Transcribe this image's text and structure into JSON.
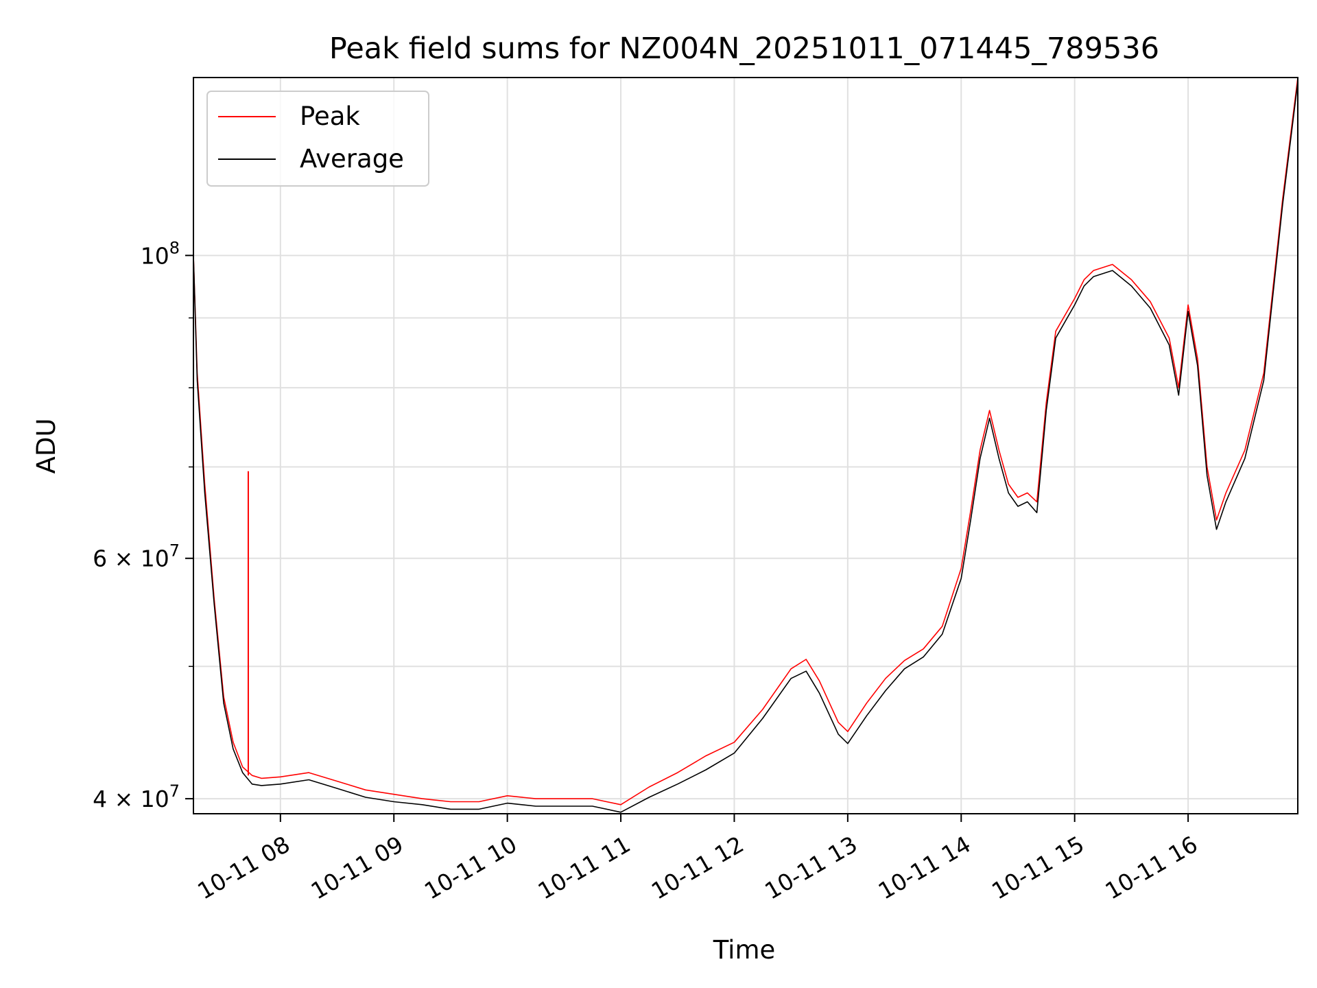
{
  "chart_data": {
    "type": "line",
    "title": "Peak field sums for NZ004N_20251011_071445_789536",
    "xlabel": "Time",
    "ylabel": "ADU",
    "yscale": "log",
    "xlim": [
      "2025-10-11 07:14",
      "2025-10-11 16:58"
    ],
    "ylim": [
      39000000,
      135000000
    ],
    "x_ticks": [
      "10-11 08",
      "10-11 09",
      "10-11 10",
      "10-11 11",
      "10-11 12",
      "10-11 13",
      "10-11 14",
      "10-11 15",
      "10-11 16"
    ],
    "y_ticks": [
      {
        "value": 40000000,
        "base": "4 × 10",
        "exp": "7"
      },
      {
        "value": 60000000,
        "base": "6 × 10",
        "exp": "7"
      },
      {
        "value": 100000000,
        "base": "10",
        "exp": "8"
      }
    ],
    "y_minor_ticks": [
      50000000,
      70000000,
      80000000,
      90000000
    ],
    "grid": true,
    "legend_position": "upper-left",
    "series": [
      {
        "name": "Peak",
        "color": "#ff0000",
        "x": [
          "07:14",
          "07:16",
          "07:20",
          "07:25",
          "07:30",
          "07:35",
          "07:40",
          "07:45",
          "07:50",
          "08:00",
          "08:15",
          "08:30",
          "08:45",
          "09:00",
          "09:15",
          "09:30",
          "09:45",
          "10:00",
          "10:15",
          "10:30",
          "10:45",
          "11:00",
          "11:15",
          "11:30",
          "11:45",
          "12:00",
          "12:15",
          "12:30",
          "12:38",
          "12:45",
          "12:55",
          "13:00",
          "13:10",
          "13:20",
          "13:30",
          "13:40",
          "13:50",
          "14:00",
          "14:05",
          "14:10",
          "14:15",
          "14:20",
          "14:25",
          "14:30",
          "14:35",
          "14:40",
          "14:45",
          "14:50",
          "15:00",
          "15:05",
          "15:10",
          "15:20",
          "15:30",
          "15:40",
          "15:50",
          "15:55",
          "16:00",
          "16:05",
          "16:10",
          "16:15",
          "16:20",
          "16:30",
          "16:40",
          "16:50",
          "16:58"
        ],
        "values": [
          100000000,
          82000000,
          68000000,
          56000000,
          47500000,
          44000000,
          42200000,
          41600000,
          41400000,
          41500000,
          41800000,
          41200000,
          40600000,
          40300000,
          40000000,
          39800000,
          39800000,
          40200000,
          40000000,
          40000000,
          40000000,
          39600000,
          40800000,
          41800000,
          43000000,
          44000000,
          46500000,
          49800000,
          50600000,
          48800000,
          45500000,
          44800000,
          47000000,
          49000000,
          50500000,
          51500000,
          53500000,
          59000000,
          65000000,
          72000000,
          77000000,
          72000000,
          68000000,
          66500000,
          67000000,
          66000000,
          78000000,
          88000000,
          93000000,
          96000000,
          97500000,
          98500000,
          96000000,
          92500000,
          87000000,
          80000000,
          92000000,
          84000000,
          70000000,
          64000000,
          67000000,
          72000000,
          82000000,
          110000000,
          135000000
        ]
      },
      {
        "name": "Average",
        "color": "#000000",
        "x": [
          "07:14",
          "07:16",
          "07:20",
          "07:25",
          "07:30",
          "07:35",
          "07:40",
          "07:45",
          "07:50",
          "08:00",
          "08:15",
          "08:30",
          "08:45",
          "09:00",
          "09:15",
          "09:30",
          "09:45",
          "10:00",
          "10:15",
          "10:30",
          "10:45",
          "11:00",
          "11:15",
          "11:30",
          "11:45",
          "12:00",
          "12:15",
          "12:30",
          "12:38",
          "12:45",
          "12:55",
          "13:00",
          "13:10",
          "13:20",
          "13:30",
          "13:40",
          "13:50",
          "14:00",
          "14:05",
          "14:10",
          "14:15",
          "14:20",
          "14:25",
          "14:30",
          "14:35",
          "14:40",
          "14:45",
          "14:50",
          "15:00",
          "15:05",
          "15:10",
          "15:20",
          "15:30",
          "15:40",
          "15:50",
          "15:55",
          "16:00",
          "16:05",
          "16:10",
          "16:15",
          "16:20",
          "16:30",
          "16:40",
          "16:50",
          "16:58"
        ],
        "values": [
          100000000,
          81000000,
          67000000,
          55500000,
          47000000,
          43500000,
          41800000,
          41000000,
          40900000,
          41000000,
          41300000,
          40700000,
          40100000,
          39800000,
          39600000,
          39300000,
          39300000,
          39700000,
          39500000,
          39500000,
          39500000,
          39100000,
          40100000,
          41000000,
          42000000,
          43200000,
          45800000,
          49000000,
          49600000,
          47800000,
          44600000,
          43900000,
          46000000,
          48000000,
          49800000,
          50800000,
          52800000,
          58000000,
          64000000,
          71000000,
          76000000,
          71000000,
          67000000,
          65500000,
          66000000,
          64800000,
          77000000,
          87000000,
          92000000,
          95000000,
          96500000,
          97500000,
          95000000,
          91500000,
          86000000,
          79000000,
          91000000,
          83000000,
          69000000,
          63000000,
          66000000,
          71000000,
          81000000,
          109000000,
          134000000
        ]
      }
    ],
    "annotations": [
      {
        "x": "07:43",
        "value": 69500000,
        "series": "Peak",
        "note_type": "spike"
      }
    ]
  }
}
